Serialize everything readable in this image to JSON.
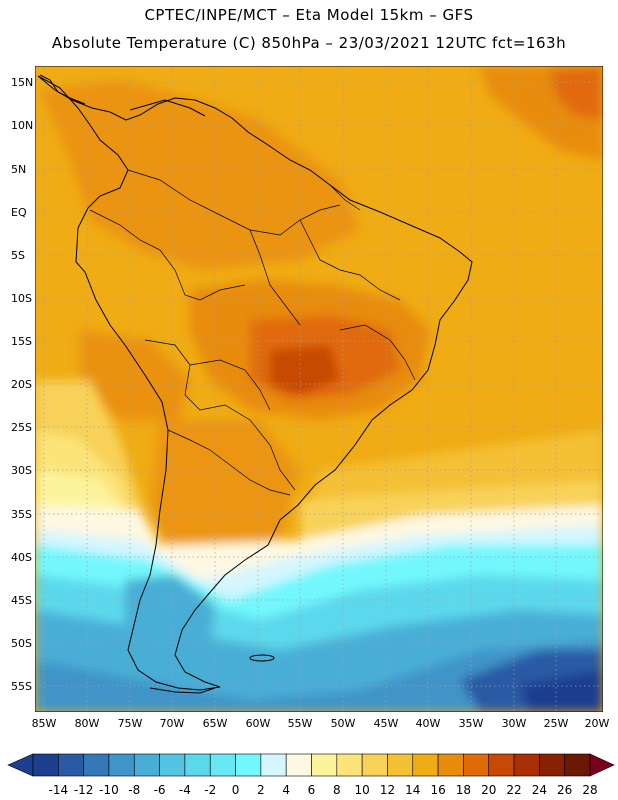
{
  "header": {
    "line1": "CPTEC/INPE/MCT –  Eta Model 15km – GFS",
    "line2": "Absolute Temperature (C) 850hPa – 23/03/2021 12UTC fct=163h"
  },
  "axes": {
    "lat_labels": [
      "15N",
      "10N",
      "5N",
      "EQ",
      "5S",
      "10S",
      "15S",
      "20S",
      "25S",
      "30S",
      "35S",
      "40S",
      "45S",
      "50S",
      "55S"
    ],
    "lon_labels": [
      "85W",
      "80W",
      "75W",
      "70W",
      "65W",
      "60W",
      "55W",
      "50W",
      "45W",
      "40W",
      "35W",
      "30W",
      "25W",
      "20W"
    ]
  },
  "colorbar": {
    "labels": [
      "-14",
      "-12",
      "-10",
      "-8",
      "-6",
      "-4",
      "-2",
      "0",
      "2",
      "4",
      "6",
      "8",
      "10",
      "12",
      "14",
      "16",
      "18",
      "20",
      "22",
      "24",
      "26",
      "28"
    ],
    "colors": [
      "#1e3e8e",
      "#2a5aa4",
      "#3478b8",
      "#3f94c8",
      "#49aed6",
      "#53c4e2",
      "#5cd8ec",
      "#67e8f4",
      "#72f8fc",
      "#d4f6fe",
      "#fef8e2",
      "#fcf49c",
      "#fce47a",
      "#f8d258",
      "#f4c034",
      "#f0ac14",
      "#e88c0c",
      "#e06a08",
      "#c84806",
      "#a83004",
      "#882004",
      "#6a1804"
    ],
    "under_color": "#1e3e8e",
    "over_color": "#7a0020"
  }
}
